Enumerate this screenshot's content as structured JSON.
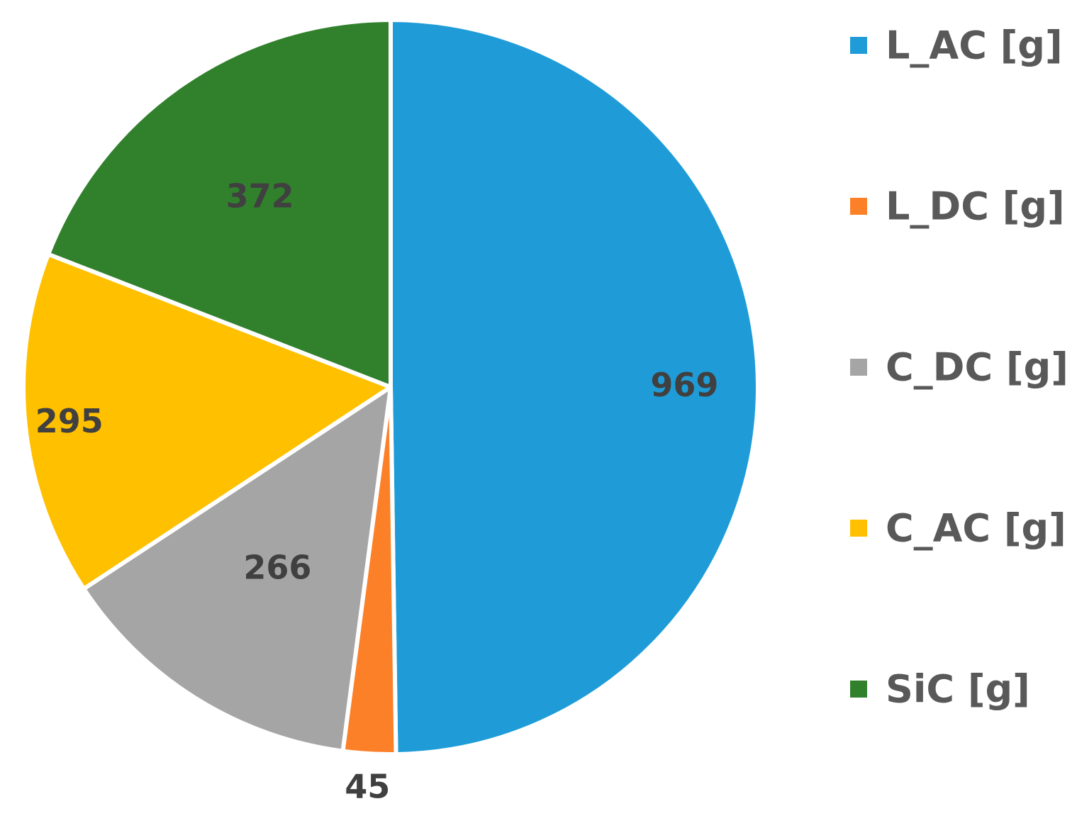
{
  "chart_data": {
    "type": "pie",
    "title": "",
    "legend_position": "right",
    "slices": [
      {
        "label": "L_AC [g]",
        "value": 969,
        "color": "#1F9CD8",
        "value_label": "969"
      },
      {
        "label": "L_DC [g]",
        "value": 45,
        "color": "#FB8028",
        "value_label": "45"
      },
      {
        "label": "C_DC [g]",
        "value": 266,
        "color": "#A5A5A5",
        "value_label": "266"
      },
      {
        "label": "C_AC [g]",
        "value": 295,
        "color": "#FFC000",
        "value_label": "295"
      },
      {
        "label": "SiC [g]",
        "value": 372,
        "color": "#31812C",
        "value_label": "372"
      }
    ]
  }
}
